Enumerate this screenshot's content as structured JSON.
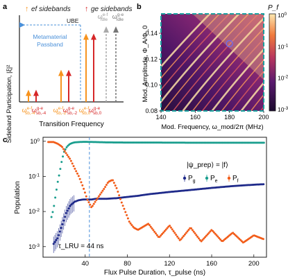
{
  "panels": {
    "a": {
      "label": "a",
      "legend": [
        {
          "text": "ef sidebands",
          "glyph": "↑",
          "color": "#f7931e"
        },
        {
          "text": "ge sidebands",
          "glyph": "↑",
          "color": "#d62728"
        }
      ],
      "ylabel": "Sideband Participation, |ξ|²",
      "xlabel": "Transition Frequency",
      "ube_label": "UBE",
      "passband_label_1": "Metamaterial",
      "passband_label_2": "Passband",
      "passband_color": "#4a90d9",
      "bottom_labels": [
        {
          "text": "ω_{sb,-4}^{e-f}",
          "main": "ω",
          "sup": "e-f",
          "sub": "sb,-4",
          "color": "#f7931e"
        },
        {
          "text": "ω_{sb,-4}^{g-e}",
          "main": "ω",
          "sup": "g-e",
          "sub": "sb,-4",
          "color": "#d62728"
        },
        {
          "text": "ω_{sb,-2}^{e-f}",
          "main": "ω",
          "sup": "e-f",
          "sub": "sb,-2",
          "color": "#f7931e"
        },
        {
          "text": "ω_{sb,-2}^{g-e}",
          "main": "ω",
          "sup": "g-e",
          "sub": "sb,-2",
          "color": "#d62728"
        },
        {
          "text": "ω_{sb,0}^{e-f}",
          "main": "ω",
          "sup": "e-f",
          "sub": "sb,0",
          "color": "#f7931e"
        },
        {
          "text": "ω_{sb,0}^{g-e}",
          "main": "ω",
          "sup": "g-e",
          "sub": "sb,0",
          "color": "#d62728"
        }
      ],
      "idle_labels": [
        {
          "text": "ω_{idle}^{e-f}",
          "main": "ω",
          "sup": "e-f",
          "sub": "idle",
          "color": "#999999"
        },
        {
          "text": "ω_{idle}^{g-e}",
          "main": "ω",
          "sup": "g-e",
          "sub": "idle",
          "color": "#777777"
        }
      ],
      "arrows": [
        {
          "type": "ef",
          "height": 0.12,
          "color": "#f7931e"
        },
        {
          "type": "ge",
          "height": 0.12,
          "color": "#d62728"
        },
        {
          "type": "ef",
          "height": 0.34,
          "color": "#f7931e"
        },
        {
          "type": "ge",
          "height": 0.34,
          "color": "#d62728"
        },
        {
          "type": "ef",
          "height": 0.74,
          "color": "#f7931e"
        },
        {
          "type": "ge",
          "height": 0.74,
          "color": "#d62728"
        }
      ]
    },
    "b": {
      "label": "b",
      "xlabel": "Mod. Frequency, ω_mod/2π (MHz)",
      "ylabel": "Mod. Amplitude, Φ_A/Φ_0",
      "xticks": [
        "140",
        "160",
        "180",
        "200"
      ],
      "yticks": [
        "0.08",
        "0.10",
        "0.12",
        "0.14"
      ],
      "xlim": [
        140,
        200
      ],
      "ylim": [
        0.08,
        0.155
      ],
      "colorbar_title": "P_f",
      "colorbar_ticks": [
        "10^0",
        "10^-1",
        "10^-2",
        "10^-3"
      ],
      "highlight_point": {
        "x": 180,
        "y": 0.132
      },
      "border_color": "#1a9e9e"
    },
    "c": {
      "label": "c",
      "ylabel": "Population",
      "xlabel": "Flux Pulse Duration, τ_pulse (ns)",
      "xticks": [
        "40",
        "80",
        "120",
        "160",
        "200"
      ],
      "yticks": [
        "10^0",
        "10^-1",
        "10^-2",
        "10^-3"
      ],
      "xlim": [
        0,
        212
      ],
      "tau_label": "τ_LRU = 44 ns",
      "tau_value": 44,
      "state_label": "|ψ_prep⟩ = |f⟩",
      "legend": [
        {
          "name": "P_g",
          "color": "#1f2a8a"
        },
        {
          "name": "P_e",
          "color": "#1a9e8e"
        },
        {
          "name": "P_f",
          "color": "#f25c19"
        }
      ]
    }
  },
  "chart_data": [
    {
      "type": "heatmap",
      "title": "",
      "xlabel": "Mod. Frequency, ω_mod/2π (MHz)",
      "ylabel": "Mod. Amplitude, Φ_A/Φ_0",
      "xlim": [
        140,
        200
      ],
      "ylim": [
        0.08,
        0.155
      ],
      "colorbar": {
        "label": "P_f",
        "scale": "log",
        "range": [
          0.001,
          1
        ]
      },
      "highlight": {
        "x": 180,
        "y": 0.132
      }
    },
    {
      "type": "scatter",
      "title": "",
      "xlabel": "Flux Pulse Duration, τ_pulse (ns)",
      "ylabel": "Population",
      "yscale": "log",
      "xlim": [
        0,
        212
      ],
      "ylim": [
        0.0005,
        1.3
      ],
      "vline": 44,
      "series": [
        {
          "name": "P_g",
          "x": [
            10,
            14,
            18,
            22,
            26,
            30,
            34,
            38,
            42,
            46,
            50,
            60,
            70,
            80,
            90,
            100,
            120,
            140,
            160,
            180,
            200,
            210
          ],
          "y": [
            0.0012,
            0.0018,
            0.004,
            0.009,
            0.015,
            0.019,
            0.021,
            0.022,
            0.022,
            0.022,
            0.023,
            0.023,
            0.024,
            0.026,
            0.028,
            0.031,
            0.036,
            0.041,
            0.047,
            0.053,
            0.058,
            0.06
          ]
        },
        {
          "name": "P_e",
          "x": [
            8,
            10,
            12,
            14,
            16,
            18,
            20,
            22,
            24,
            26,
            28,
            30,
            34,
            38,
            42,
            50,
            60,
            80,
            100,
            140,
            180,
            210
          ],
          "y": [
            0.007,
            0.012,
            0.03,
            0.07,
            0.14,
            0.3,
            0.5,
            0.65,
            0.77,
            0.85,
            0.9,
            0.93,
            0.95,
            0.96,
            0.96,
            0.95,
            0.93,
            0.92,
            0.92,
            0.91,
            0.91,
            0.91
          ]
        },
        {
          "name": "P_f",
          "x": [
            5,
            10,
            14,
            18,
            22,
            26,
            30,
            34,
            38,
            42,
            46,
            50,
            54,
            58,
            62,
            66,
            70,
            74,
            78,
            82,
            86,
            90,
            100,
            110,
            120,
            130,
            140,
            150,
            160,
            170,
            180,
            190,
            200,
            210
          ],
          "y": [
            0.95,
            0.95,
            0.85,
            0.7,
            0.45,
            0.3,
            0.17,
            0.1,
            0.05,
            0.022,
            0.013,
            0.02,
            0.03,
            0.045,
            0.07,
            0.08,
            0.045,
            0.02,
            0.01,
            0.005,
            0.0035,
            0.003,
            0.0045,
            0.0018,
            0.004,
            0.0015,
            0.0035,
            0.0014,
            0.003,
            0.0014,
            0.0025,
            0.0013,
            0.0021,
            0.0016
          ]
        }
      ]
    }
  ]
}
